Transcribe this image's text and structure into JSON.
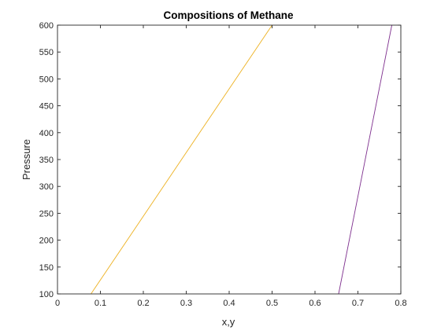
{
  "colors": {
    "background": "#ffffff",
    "axes": "#262626"
  },
  "chart_data": {
    "type": "line",
    "title": "Compositions of Methane",
    "xlabel": "x,y",
    "ylabel": "Pressure",
    "xlim": [
      0,
      0.8
    ],
    "ylim": [
      100,
      600
    ],
    "x_ticks": [
      "0",
      "0.1",
      "0.2",
      "0.3",
      "0.4",
      "0.5",
      "0.6",
      "0.7",
      "0.8"
    ],
    "y_ticks": [
      "100",
      "150",
      "200",
      "250",
      "300",
      "350",
      "400",
      "450",
      "500",
      "550",
      "600"
    ],
    "grid": false,
    "legend": "none",
    "series": [
      {
        "color": "#EDB120",
        "x": [
          0.078,
          0.5
        ],
        "y": [
          100,
          600
        ]
      },
      {
        "color": "#7E2F8E",
        "x": [
          0.655,
          0.779
        ],
        "y": [
          100,
          600
        ]
      }
    ]
  }
}
